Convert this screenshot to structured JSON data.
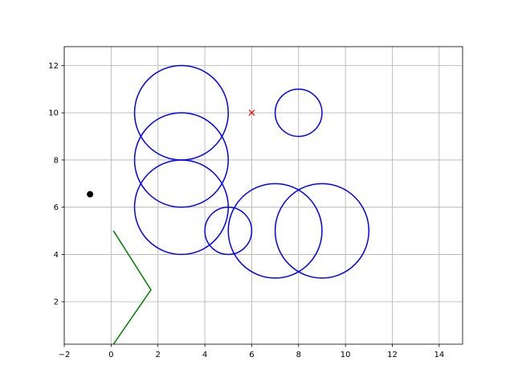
{
  "chart_data": {
    "type": "scatter",
    "title": "",
    "xlabel": "",
    "ylabel": "",
    "xlim": [
      -2,
      15
    ],
    "ylim": [
      0.2,
      12.8
    ],
    "grid": true,
    "x_ticks": [
      "−2",
      "0",
      "2",
      "4",
      "6",
      "8",
      "10",
      "12",
      "14"
    ],
    "x_tick_values": [
      -2,
      0,
      2,
      4,
      6,
      8,
      10,
      12,
      14
    ],
    "y_ticks": [
      "2",
      "4",
      "6",
      "8",
      "10",
      "12"
    ],
    "y_tick_values": [
      2,
      4,
      6,
      8,
      10,
      12
    ],
    "circles": [
      {
        "cx": 3,
        "cy": 10,
        "r": 2
      },
      {
        "cx": 3,
        "cy": 8,
        "r": 2
      },
      {
        "cx": 3,
        "cy": 6,
        "r": 2
      },
      {
        "cx": 8,
        "cy": 10,
        "r": 1
      },
      {
        "cx": 5,
        "cy": 5,
        "r": 1
      },
      {
        "cx": 7,
        "cy": 5,
        "r": 2
      },
      {
        "cx": 9,
        "cy": 5,
        "r": 2
      }
    ],
    "circle_color": "#0000ff",
    "path": {
      "x": [
        0.1,
        1.7,
        0.1
      ],
      "y": [
        5,
        2.5,
        0.2
      ],
      "color": "#008000"
    },
    "point_marker": {
      "x": -0.9,
      "y": 6.55,
      "color": "#000000"
    },
    "x_marker": {
      "x": 6,
      "y": 10,
      "color": "#ff0000"
    },
    "grid_color": "#b0b0b0"
  }
}
